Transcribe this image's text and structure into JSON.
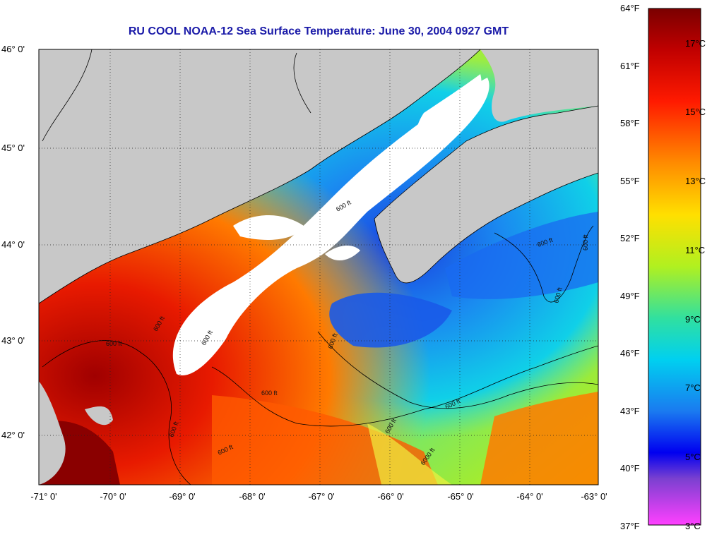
{
  "title": "RU COOL  NOAA-12  Sea Surface Temperature:  June 30, 2004 0927 GMT",
  "lat_labels": [
    "46° 0'",
    "45° 0'",
    "44° 0'",
    "43° 0'",
    "42° 0'"
  ],
  "lon_labels": [
    "-71° 0'",
    "-70° 0'",
    "-69° 0'",
    "-68° 0'",
    "-67° 0'",
    "-66° 0'",
    "-65° 0'",
    "-64° 0'",
    "-63° 0'"
  ],
  "colorbar": {
    "fahrenheit": [
      "64°F",
      "61°F",
      "58°F",
      "55°F",
      "52°F",
      "49°F",
      "46°F",
      "43°F",
      "40°F",
      "37°F"
    ],
    "celsius": [
      "17°C",
      "15°C",
      "13°C",
      "11°C",
      "9°C",
      "7°C",
      "5°C",
      "3°C"
    ]
  },
  "contour_label": "600 ft",
  "contour_label_deep": "6000 ft",
  "colors": {
    "land": "#c8c8c8",
    "cloud": "#ffffff",
    "title": "#1a1aa8"
  }
}
